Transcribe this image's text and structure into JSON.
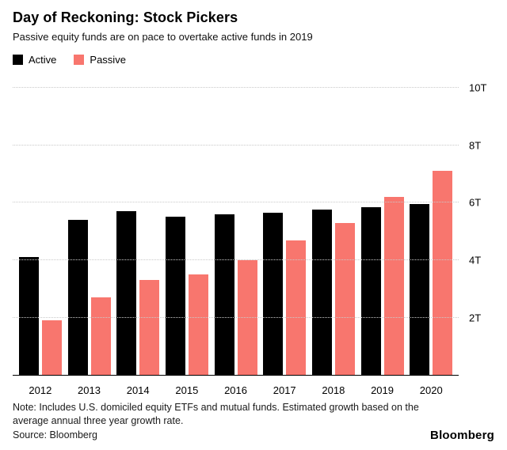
{
  "header": {
    "title": "Day of Reckoning: Stock Pickers",
    "subtitle": "Passive equity funds are on pace to overtake active funds in 2019"
  },
  "legend": [
    {
      "label": "Active",
      "color": "#000000"
    },
    {
      "label": "Passive",
      "color": "#F8766E"
    }
  ],
  "chart_data": {
    "type": "bar",
    "categories": [
      "2012",
      "2013",
      "2014",
      "2015",
      "2016",
      "2017",
      "2018",
      "2019",
      "2020"
    ],
    "series": [
      {
        "name": "Active",
        "color": "#000000",
        "values": [
          4.1,
          5.4,
          5.7,
          5.5,
          5.6,
          5.65,
          5.75,
          5.85,
          5.95
        ]
      },
      {
        "name": "Passive",
        "color": "#F8766E",
        "values": [
          1.9,
          2.7,
          3.3,
          3.5,
          4.0,
          4.7,
          5.3,
          6.2,
          7.1
        ]
      }
    ],
    "title": "Day of Reckoning: Stock Pickers",
    "xlabel": "",
    "ylabel": "",
    "ylim": [
      0,
      10
    ],
    "yticks": [
      2,
      4,
      6,
      8,
      10
    ],
    "ytick_labels": [
      "2T",
      "4T",
      "6T",
      "8T",
      "10T"
    ],
    "grid": "horizontal-dotted",
    "legend_position": "top-left"
  },
  "footer": {
    "note": "Note: Includes U.S. domiciled equity ETFs and mutual funds. Estimated growth based on the average annual three year growth rate.",
    "source": "Source: Bloomberg",
    "brand": "Bloomberg"
  }
}
